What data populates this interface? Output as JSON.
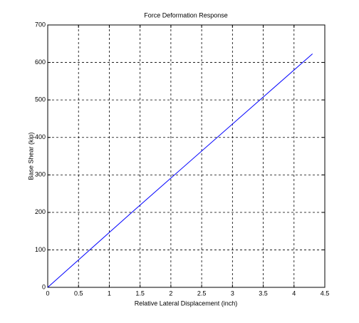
{
  "chart_data": {
    "type": "line",
    "title": "Force Deformation Response",
    "xlabel": "Relative Lateral Displacement (inch)",
    "ylabel": "Base Shear (kip)",
    "x": [
      0,
      1.4,
      4.3
    ],
    "series": [
      {
        "name": "Base Shear",
        "color": "#0000ff",
        "values": [
          0,
          205,
          623
        ]
      }
    ],
    "xlim": [
      0,
      4.5
    ],
    "xticks": [
      0,
      0.5,
      1,
      1.5,
      2,
      2.5,
      3,
      3.5,
      4,
      4.5
    ],
    "ylim": [
      0,
      700
    ],
    "yticks": [
      0,
      100,
      200,
      300,
      400,
      500,
      600,
      700
    ],
    "grid": true,
    "legend": false
  }
}
